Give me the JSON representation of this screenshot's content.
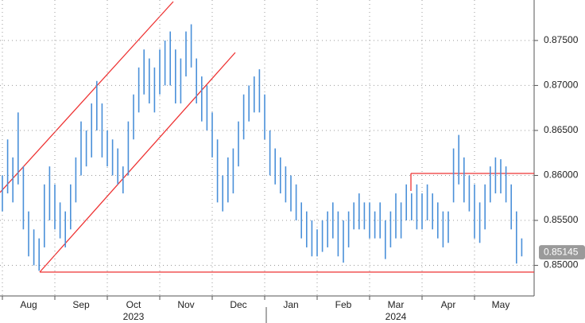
{
  "chart_data": {
    "type": "range",
    "color": "#4a90d9",
    "categories": [
      null,
      null,
      null,
      null,
      null,
      "Aug",
      null,
      null,
      null,
      null,
      null,
      null,
      null,
      null,
      null,
      "Sep",
      null,
      null,
      null,
      null,
      null,
      null,
      null,
      null,
      null,
      "Oct",
      null,
      null,
      null,
      null,
      null,
      null,
      null,
      null,
      null,
      "Nov",
      null,
      null,
      null,
      null,
      null,
      null,
      null,
      null,
      null,
      "Dec",
      null,
      null,
      null,
      null,
      null,
      null,
      null,
      null,
      null,
      "Jan",
      null,
      null,
      null,
      null,
      null,
      null,
      null,
      null,
      null,
      "Feb",
      null,
      null,
      null,
      null,
      null,
      null,
      null,
      null,
      null,
      "Mar",
      null,
      null,
      null,
      null,
      null,
      null,
      null,
      null,
      null,
      "Apr",
      null,
      null,
      null,
      null,
      null,
      null,
      null,
      null,
      null,
      "May",
      null,
      null,
      null,
      null
    ],
    "years": [
      "2023",
      "2024"
    ],
    "high": [
      0.86,
      0.864,
      0.862,
      0.867,
      0.861,
      0.856,
      0.854,
      0.853,
      0.859,
      0.861,
      0.859,
      0.857,
      0.856,
      0.859,
      0.862,
      0.866,
      0.865,
      0.868,
      0.8705,
      0.868,
      0.865,
      0.864,
      0.863,
      0.861,
      0.866,
      0.869,
      0.872,
      0.874,
      0.873,
      0.872,
      0.874,
      0.875,
      0.876,
      0.874,
      0.873,
      0.876,
      0.8768,
      0.873,
      0.871,
      0.87,
      0.867,
      0.864,
      0.86,
      0.862,
      0.863,
      0.866,
      0.869,
      0.87,
      0.871,
      0.8718,
      0.869,
      0.865,
      0.863,
      0.862,
      0.861,
      0.86,
      0.859,
      0.857,
      0.856,
      0.855,
      0.854,
      0.855,
      0.856,
      0.857,
      0.856,
      0.855,
      0.856,
      0.857,
      0.858,
      0.857,
      0.857,
      0.856,
      0.857,
      0.855,
      0.856,
      0.858,
      0.857,
      0.859,
      0.858,
      0.859,
      0.858,
      0.859,
      0.858,
      0.857,
      0.856,
      0.856,
      0.863,
      0.8645,
      0.862,
      0.86,
      0.859,
      0.857,
      0.859,
      0.861,
      0.862,
      0.8618,
      0.861,
      0.859,
      0.856,
      0.853
    ],
    "low": [
      0.856,
      0.858,
      0.857,
      0.859,
      0.854,
      0.851,
      0.85,
      0.8494,
      0.852,
      0.855,
      0.854,
      0.853,
      0.852,
      0.854,
      0.857,
      0.86,
      0.861,
      0.862,
      0.865,
      0.862,
      0.861,
      0.86,
      0.859,
      0.858,
      0.86,
      0.864,
      0.867,
      0.869,
      0.868,
      0.867,
      0.869,
      0.87,
      0.87,
      0.868,
      0.868,
      0.871,
      0.872,
      0.868,
      0.866,
      0.865,
      0.862,
      0.857,
      0.856,
      0.857,
      0.858,
      0.861,
      0.864,
      0.866,
      0.867,
      0.867,
      0.864,
      0.86,
      0.859,
      0.858,
      0.857,
      0.856,
      0.855,
      0.853,
      0.852,
      0.851,
      0.851,
      0.8515,
      0.852,
      0.853,
      0.851,
      0.8503,
      0.852,
      0.854,
      0.854,
      0.854,
      0.853,
      0.853,
      0.853,
      0.8507,
      0.852,
      0.853,
      0.853,
      0.855,
      0.855,
      0.854,
      0.854,
      0.855,
      0.854,
      0.853,
      0.852,
      0.8525,
      0.857,
      0.859,
      0.857,
      0.856,
      0.853,
      0.8525,
      0.854,
      0.857,
      0.858,
      0.858,
      0.857,
      0.854,
      0.8502,
      0.851
    ],
    "last_value": 0.85145,
    "ylim": [
      0.8466,
      0.8795
    ],
    "yticks": [
      {
        "value": 0.85,
        "label": "0.85000"
      },
      {
        "value": 0.855,
        "label": "0.85500"
      },
      {
        "value": 0.86,
        "label": "0.86000"
      },
      {
        "value": 0.865,
        "label": "0.86500"
      },
      {
        "value": 0.87,
        "label": "0.87000"
      },
      {
        "value": 0.875,
        "label": "0.87500"
      }
    ],
    "grid": true
  }
}
